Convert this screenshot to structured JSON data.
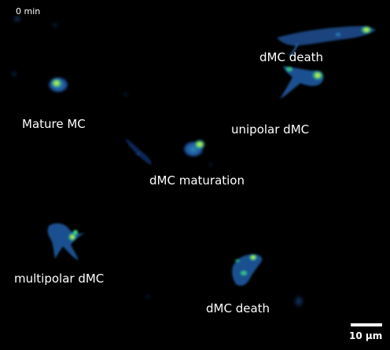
{
  "timestamp": "0 min",
  "labels": {
    "mature": "Mature MC",
    "death_top": "dMC death",
    "unipolar": "unipolar dMC",
    "maturation": "dMC maturation",
    "multipolar": "multipolar dMC",
    "death_bottom": "dMC death"
  },
  "scale_bar": {
    "label": "10 µm"
  },
  "colors": {
    "background": "#000000",
    "cell_dim": "#1a3a7a",
    "cell_mid": "#2a7fb0",
    "cell_bright": "#3ad08a",
    "cell_hot": "#e8f03a",
    "text": "#ffffff"
  }
}
